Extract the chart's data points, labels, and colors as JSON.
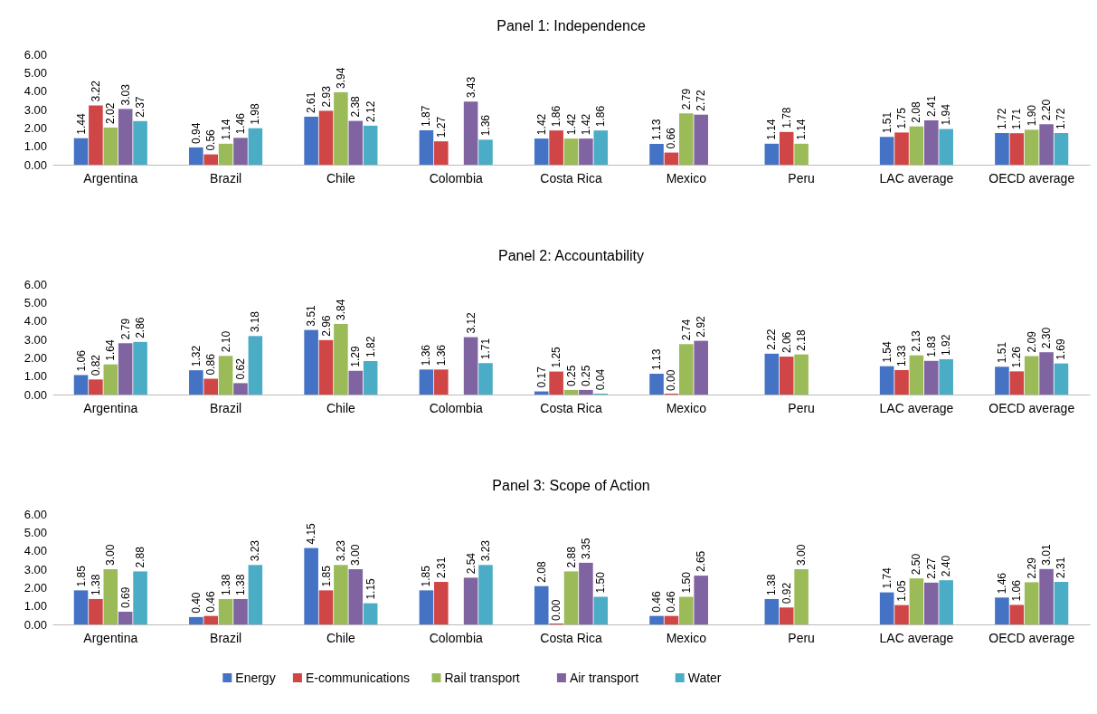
{
  "chart_data": [
    {
      "type": "bar",
      "title": "Panel 1: Independence",
      "categories": [
        "Argentina",
        "Brazil",
        "Chile",
        "Colombia",
        "Costa Rica",
        "Mexico",
        "Peru",
        "LAC average",
        "OECD average"
      ],
      "ylim": [
        0,
        6
      ],
      "yticks": [
        {
          "value": 0,
          "label": "0.00"
        },
        {
          "value": 1,
          "label": "1.00"
        },
        {
          "value": 2,
          "label": "2.00"
        },
        {
          "value": 3,
          "label": "3.00"
        },
        {
          "value": 4,
          "label": "4.00"
        },
        {
          "value": 5,
          "label": "5.00"
        },
        {
          "value": 6,
          "label": "6.00"
        }
      ],
      "legend": false,
      "series": [
        {
          "color": "#4472c4",
          "values": [
            1.44,
            0.94,
            2.61,
            1.87,
            1.42,
            1.13,
            1.14,
            1.51,
            1.72
          ],
          "value_labels": [
            "1.44",
            "0.94",
            "2.61",
            "1.87",
            "1.42",
            "1.13",
            "1.14",
            "1.51",
            "1.72"
          ]
        },
        {
          "color": "#d04545",
          "values": [
            3.22,
            0.56,
            2.93,
            1.27,
            1.86,
            0.66,
            1.78,
            1.75,
            1.71
          ],
          "value_labels": [
            "3.22",
            "0.56",
            "2.93",
            "1.27",
            "1.86",
            "0.66",
            "1.78",
            "1.75",
            "1.71"
          ]
        },
        {
          "color": "#9bbb59",
          "values": [
            2.02,
            1.14,
            3.94,
            null,
            1.42,
            2.79,
            1.14,
            2.08,
            1.9
          ],
          "value_labels": [
            "2.02",
            "1.14",
            "3.94",
            null,
            "1.42",
            "2.79",
            "1.14",
            "2.08",
            "1.90"
          ]
        },
        {
          "color": "#8064a2",
          "values": [
            3.03,
            1.46,
            2.38,
            3.43,
            1.42,
            2.72,
            null,
            2.41,
            2.2
          ],
          "value_labels": [
            "3.03",
            "1.46",
            "2.38",
            "3.43",
            "1.42",
            "2.72",
            null,
            "2.41",
            "2.20"
          ]
        },
        {
          "color": "#4bacc6",
          "values": [
            2.37,
            1.98,
            2.12,
            1.36,
            1.86,
            null,
            null,
            1.94,
            1.72
          ],
          "value_labels": [
            "2.37",
            "1.98",
            "2.12",
            "1.36",
            "1.86",
            null,
            null,
            "1.94",
            "1.72"
          ]
        }
      ]
    },
    {
      "type": "bar",
      "title": "Panel 2: Accountability",
      "categories": [
        "Argentina",
        "Brazil",
        "Chile",
        "Colombia",
        "Costa Rica",
        "Mexico",
        "Peru",
        "LAC average",
        "OECD average"
      ],
      "ylim": [
        0,
        6
      ],
      "yticks": [
        {
          "value": 0,
          "label": "0.00"
        },
        {
          "value": 1,
          "label": "1.00"
        },
        {
          "value": 2,
          "label": "2.00"
        },
        {
          "value": 3,
          "label": "3.00"
        },
        {
          "value": 4,
          "label": "4.00"
        },
        {
          "value": 5,
          "label": "5.00"
        },
        {
          "value": 6,
          "label": "6.00"
        }
      ],
      "legend": false,
      "series": [
        {
          "color": "#4472c4",
          "values": [
            1.06,
            1.32,
            3.51,
            1.36,
            0.17,
            1.13,
            2.22,
            1.54,
            1.51
          ],
          "value_labels": [
            "1.06",
            "1.32",
            "3.51",
            "1.36",
            "0.17",
            "1.13",
            "2.22",
            "1.54",
            "1.51"
          ]
        },
        {
          "color": "#d04545",
          "values": [
            0.82,
            0.86,
            2.96,
            1.36,
            1.25,
            0.0,
            2.06,
            1.33,
            1.26
          ],
          "value_labels": [
            "0.82",
            "0.86",
            "2.96",
            "1.36",
            "1.25",
            "0.00",
            "2.06",
            "1.33",
            "1.26"
          ]
        },
        {
          "color": "#9bbb59",
          "values": [
            1.64,
            2.1,
            3.84,
            null,
            0.25,
            2.74,
            2.18,
            2.13,
            2.09
          ],
          "value_labels": [
            "1.64",
            "2.10",
            "3.84",
            null,
            "0.25",
            "2.74",
            "2.18",
            "2.13",
            "2.09"
          ]
        },
        {
          "color": "#8064a2",
          "values": [
            2.79,
            0.62,
            1.29,
            3.12,
            0.25,
            2.92,
            null,
            1.83,
            2.3
          ],
          "value_labels": [
            "2.79",
            "0.62",
            "1.29",
            "3.12",
            "0.25",
            "2.92",
            null,
            "1.83",
            "2.30"
          ]
        },
        {
          "color": "#4bacc6",
          "values": [
            2.86,
            3.18,
            1.82,
            1.71,
            0.04,
            null,
            null,
            1.92,
            1.69
          ],
          "value_labels": [
            "2.86",
            "3.18",
            "1.82",
            "1.71",
            "0.04",
            null,
            null,
            "1.92",
            "1.69"
          ]
        }
      ]
    },
    {
      "type": "bar",
      "title": "Panel 3: Scope of Action",
      "categories": [
        "Argentina",
        "Brazil",
        "Chile",
        "Colombia",
        "Costa Rica",
        "Mexico",
        "Peru",
        "LAC average",
        "OECD average"
      ],
      "ylim": [
        0,
        6
      ],
      "yticks": [
        {
          "value": 0,
          "label": "0.00"
        },
        {
          "value": 1,
          "label": "1.00"
        },
        {
          "value": 2,
          "label": "2.00"
        },
        {
          "value": 3,
          "label": "3.00"
        },
        {
          "value": 4,
          "label": "4.00"
        },
        {
          "value": 5,
          "label": "5.00"
        },
        {
          "value": 6,
          "label": "6.00"
        }
      ],
      "legend": "bottom",
      "series": [
        {
          "name": "Energy",
          "color": "#4472c4",
          "values": [
            1.85,
            0.4,
            4.15,
            1.85,
            2.08,
            0.46,
            1.38,
            1.74,
            1.46
          ],
          "value_labels": [
            "1.85",
            "0.40",
            "4.15",
            "1.85",
            "2.08",
            "0.46",
            "1.38",
            "1.74",
            "1.46"
          ]
        },
        {
          "name": "E-communications",
          "color": "#d04545",
          "values": [
            1.38,
            0.46,
            1.85,
            2.31,
            0.0,
            0.46,
            0.92,
            1.05,
            1.06
          ],
          "value_labels": [
            "1.38",
            "0.46",
            "1.85",
            "2.31",
            "0.00",
            "0.46",
            "0.92",
            "1.05",
            "1.06"
          ]
        },
        {
          "name": "Rail transport",
          "color": "#9bbb59",
          "values": [
            3.0,
            1.38,
            3.23,
            null,
            2.88,
            1.5,
            3.0,
            2.5,
            2.29
          ],
          "value_labels": [
            "3.00",
            "1.38",
            "3.23",
            null,
            "2.88",
            "1.50",
            "3.00",
            "2.50",
            "2.29"
          ]
        },
        {
          "name": "Air transport",
          "color": "#8064a2",
          "values": [
            0.69,
            1.38,
            3.0,
            2.54,
            3.35,
            2.65,
            null,
            2.27,
            3.01
          ],
          "value_labels": [
            "0.69",
            "1.38",
            "3.00",
            "2.54",
            "3.35",
            "2.65",
            null,
            "2.27",
            "3.01"
          ]
        },
        {
          "name": "Water",
          "color": "#4bacc6",
          "values": [
            2.88,
            3.23,
            1.15,
            3.23,
            1.5,
            null,
            null,
            2.4,
            2.31
          ],
          "value_labels": [
            "2.88",
            "3.23",
            "1.15",
            "3.23",
            "1.50",
            null,
            null,
            "2.40",
            "2.31"
          ]
        }
      ]
    }
  ]
}
